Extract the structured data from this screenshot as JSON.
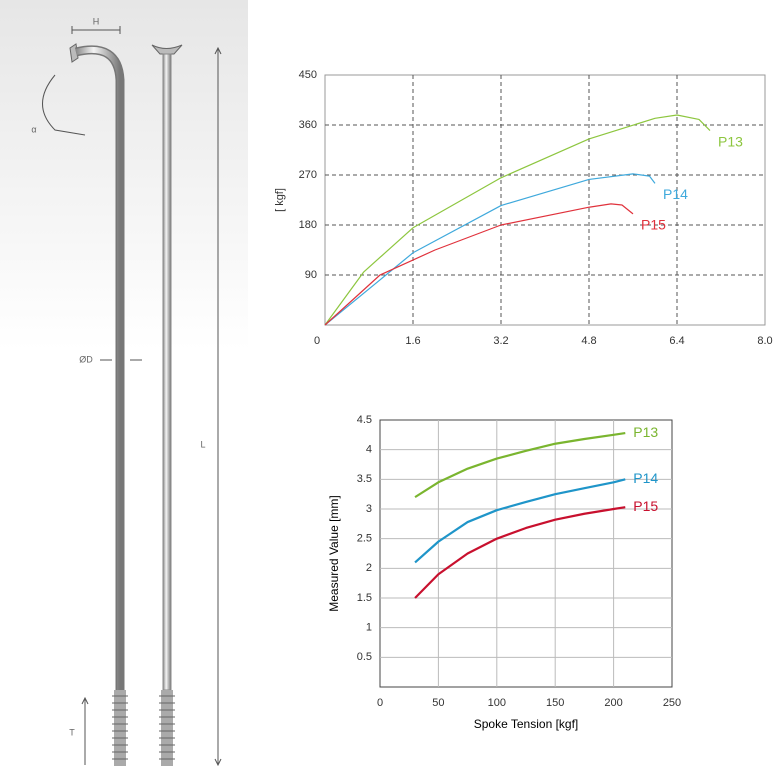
{
  "diagram": {
    "labels": [
      "H",
      "α",
      "ØD",
      "L",
      "T"
    ]
  },
  "chart_data": [
    {
      "type": "line",
      "ylabel": "[ kgf]",
      "xlim": [
        0,
        8
      ],
      "xticks": [
        0,
        1.6,
        3.2,
        4.8,
        6.4,
        {
          "value": 8,
          "label": "8.0"
        }
      ],
      "ylim": [
        0,
        450
      ],
      "yticks": [
        90,
        180,
        270,
        360,
        450
      ],
      "grid": "dashed",
      "series": [
        {
          "name": "P13",
          "color": "#8dc63f",
          "x": [
            0,
            0.7,
            1.6,
            3.2,
            4.8,
            6.0,
            6.4,
            6.8,
            7.0
          ],
          "values": [
            0,
            95,
            175,
            265,
            335,
            372,
            378,
            370,
            350
          ]
        },
        {
          "name": "P14",
          "color": "#3fa9dc",
          "x": [
            0,
            1.6,
            3.2,
            4.8,
            5.6,
            5.9,
            6.0
          ],
          "values": [
            0,
            130,
            215,
            262,
            272,
            268,
            255
          ]
        },
        {
          "name": "P15",
          "color": "#e0323c",
          "x": [
            0,
            1.0,
            2.0,
            3.2,
            4.8,
            5.2,
            5.4,
            5.6
          ],
          "values": [
            0,
            90,
            135,
            180,
            212,
            218,
            216,
            200
          ]
        }
      ]
    },
    {
      "type": "line",
      "xlabel": "Spoke Tension [kgf]",
      "ylabel": "Measured Value [mm]",
      "xlim": [
        0,
        250
      ],
      "xticks": [
        0,
        50,
        100,
        150,
        200,
        250
      ],
      "ylim": [
        0,
        4.5
      ],
      "yticks": [
        0.5,
        1,
        1.5,
        2,
        2.5,
        3,
        3.5,
        4,
        4.5
      ],
      "grid": "solid",
      "series": [
        {
          "name": "P13",
          "color": "#7ab52f",
          "x": [
            30,
            50,
            75,
            100,
            125,
            150,
            175,
            200,
            210
          ],
          "values": [
            3.2,
            3.45,
            3.68,
            3.85,
            3.98,
            4.1,
            4.18,
            4.25,
            4.28
          ]
        },
        {
          "name": "P14",
          "color": "#1f95c9",
          "x": [
            30,
            50,
            75,
            100,
            125,
            150,
            175,
            200,
            210
          ],
          "values": [
            2.1,
            2.45,
            2.78,
            2.98,
            3.12,
            3.25,
            3.35,
            3.45,
            3.5
          ]
        },
        {
          "name": "P15",
          "color": "#c8102e",
          "x": [
            30,
            50,
            75,
            100,
            125,
            150,
            175,
            200,
            210
          ],
          "values": [
            1.5,
            1.9,
            2.25,
            2.5,
            2.68,
            2.82,
            2.92,
            3.0,
            3.03
          ]
        }
      ]
    }
  ]
}
